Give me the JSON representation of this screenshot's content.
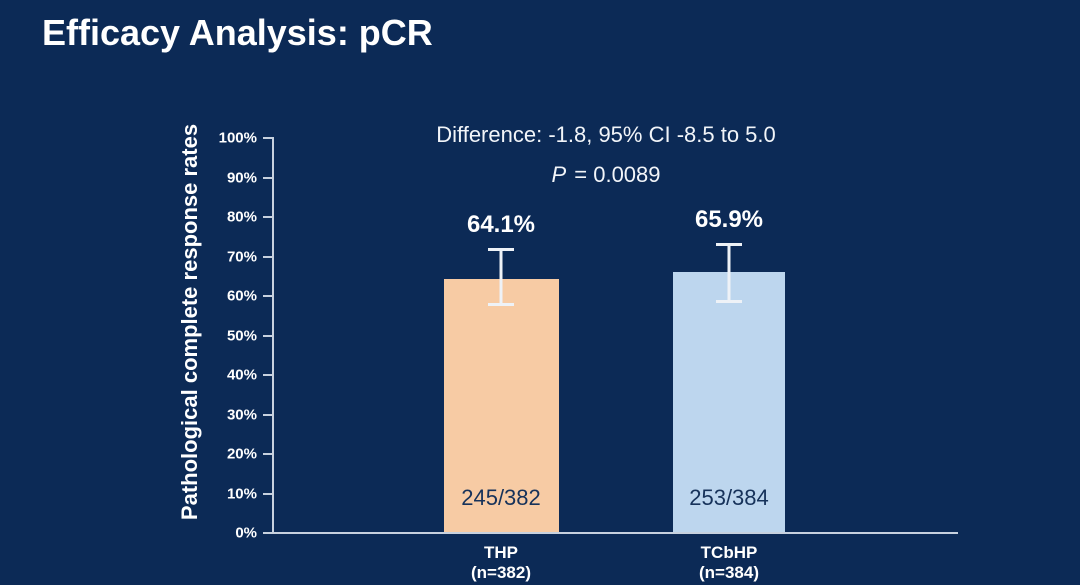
{
  "slide": {
    "title": "Efficacy Analysis: pCR",
    "background_color": "#0C2A56",
    "title_color": "#FFFFFF"
  },
  "chart_data": {
    "type": "bar",
    "title": "Efficacy Analysis: pCR",
    "ylabel": "Pathological complete response rates",
    "xlabel": "",
    "ylim": [
      0,
      100
    ],
    "yticks": [
      "0%",
      "10%",
      "20%",
      "30%",
      "40%",
      "50%",
      "60%",
      "70%",
      "80%",
      "90%",
      "100%"
    ],
    "grid": false,
    "legend": "none",
    "annotations": {
      "difference_line": "Difference: -1.8, 95% CI -8.5 to 5.0",
      "p_italic": "P",
      "p_text": " = 0.0089"
    },
    "categories": [
      "THP",
      "TCbHP"
    ],
    "series": [
      {
        "category": "THP",
        "n_label": "（n=382）",
        "value_pct": 64.1,
        "value_label": "64.1%",
        "count_label": "245/382",
        "ci_low_pct": 57.5,
        "ci_high_pct": 71.8,
        "bar_color": "#F7CBA4"
      },
      {
        "category": "TCbHP",
        "n_label": "（n=384）",
        "value_pct": 65.9,
        "value_label": "65.9%",
        "count_label": "253/384",
        "ci_low_pct": 58.2,
        "ci_high_pct": 73.1,
        "bar_color": "#BDD6EE"
      }
    ],
    "colors": {
      "axis": "#C7D1DF",
      "error_bar": "#EEF2F7",
      "count_text": "#16325A",
      "annotation_text": "#F2F5F9"
    }
  }
}
